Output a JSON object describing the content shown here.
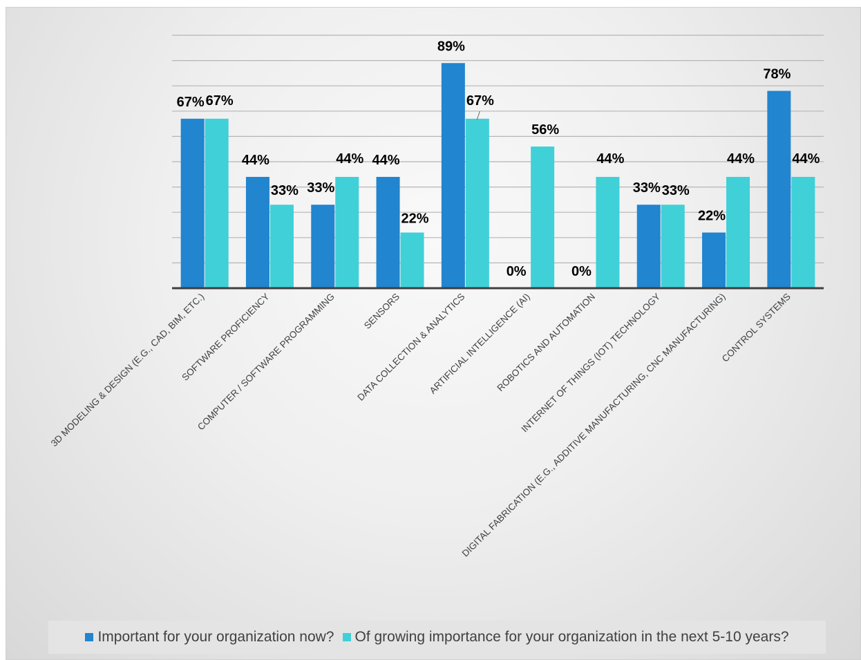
{
  "chart_data": {
    "type": "bar",
    "categories": [
      "3D MODELING & DESIGN (E.G., CAD, BIM, ETC.)",
      "SOFTWARE PROFICIENCY",
      "COMPUTER / SOFTWARE PROGRAMMING",
      "SENSORS",
      "DATA COLLECTION & ANALYTICS",
      "ARTIFICIAL INTELLIGENCE (AI)",
      "ROBOTICS AND AUTOMATION",
      "INTERNET OF THINGS (IOT) TECHNOLOGY",
      "DIGITAL FABRICATION (E.G., ADDITIVE MANUFACTURING, CNC MANUFACTURING)",
      "CONTROL SYSTEMS"
    ],
    "series": [
      {
        "name": "Important for your organization now?",
        "color": "#2185cf",
        "values": [
          67,
          44,
          33,
          44,
          89,
          0,
          0,
          33,
          22,
          78
        ],
        "labels": [
          "67%",
          "44%",
          "33%",
          "44%",
          "89%",
          "0%",
          "0%",
          "33%",
          "22%",
          "78%"
        ]
      },
      {
        "name": "Of growing importance for your organization in the next 5-10 years?",
        "color": "#40d0d8",
        "values": [
          67,
          33,
          44,
          22,
          67,
          56,
          44,
          33,
          44,
          44
        ],
        "labels": [
          "67%",
          "33%",
          "44%",
          "22%",
          "67%",
          "56%",
          "44%",
          "33%",
          "44%",
          "44%"
        ]
      }
    ],
    "ylim": [
      0,
      100
    ],
    "grid": true,
    "legend_position": "bottom",
    "title": "",
    "xlabel": "",
    "ylabel": ""
  }
}
